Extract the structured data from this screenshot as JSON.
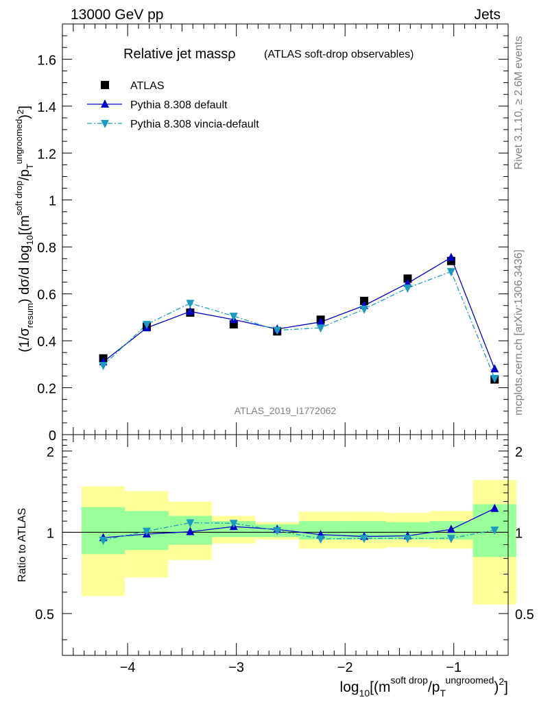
{
  "header": {
    "left": "13000 GeV pp",
    "right": "Jets"
  },
  "side_labels": {
    "rivet": "Rivet 3.1.10, ≥ 2.6M events",
    "mcplots": "mcplots.cern.ch [arXiv:1306.3436]"
  },
  "chart_data": {
    "type": "scatter",
    "title": "Relative jet massρ",
    "subtitle": "(ATLAS soft-drop observables)",
    "watermark": "ATLAS_2019_I1772062",
    "xlabel": "log10[(m^{soft drop}/p_T^{ungroomed})^2]",
    "ylabel_main": "(1/σ_resum) dσ/d log10[(m^{soft drop}/p_T^{ungroomed})^2]",
    "ylabel_ratio": "Ratio to ATLAS",
    "xlim": [
      -4.6,
      -0.5
    ],
    "ylim_main": [
      0,
      1.75
    ],
    "ylim_ratio": [
      0.35,
      2.3
    ],
    "ratio_log_scale": true,
    "x_ticks": [
      "−4",
      "−3",
      "−2",
      "−1"
    ],
    "y_ticks_main": [
      "0",
      "0.2",
      "0.4",
      "0.6",
      "0.8",
      "1",
      "1.2",
      "1.4",
      "1.6"
    ],
    "y_ticks_ratio": [
      "0.5",
      "1",
      "2"
    ],
    "bin_edges": [
      -4.5,
      -4.1,
      -3.7,
      -3.3,
      -2.9,
      -2.5,
      -2.1,
      -1.7,
      -1.3,
      -0.9,
      -0.5
    ],
    "x": [
      -4.3,
      -3.9,
      -3.5,
      -3.1,
      -2.7,
      -2.3,
      -1.9,
      -1.5,
      -1.1,
      -0.7
    ],
    "legend_position": "top-left",
    "series": [
      {
        "name": "ATLAS",
        "marker": "square",
        "color": "#000000",
        "values": [
          0.325,
          0.46,
          0.52,
          0.47,
          0.44,
          0.49,
          0.57,
          0.665,
          0.74,
          0.235
        ]
      },
      {
        "name": "Pythia 8.308 default",
        "marker": "triangle-up",
        "line": "solid",
        "color": "#0000cc",
        "values": [
          0.31,
          0.455,
          0.525,
          0.49,
          0.45,
          0.48,
          0.55,
          0.645,
          0.755,
          0.28
        ]
      },
      {
        "name": "Pythia 8.308 vincia-default",
        "marker": "triangle-down",
        "line": "dashdot",
        "color": "#1a9bbf",
        "values": [
          0.295,
          0.47,
          0.56,
          0.505,
          0.445,
          0.455,
          0.535,
          0.625,
          0.695,
          0.24
        ]
      }
    ],
    "ratio_series": [
      {
        "name": "Pythia 8.308 default",
        "values": [
          0.955,
          0.985,
          1.005,
          1.05,
          1.025,
          0.98,
          0.965,
          0.97,
          1.025,
          1.225
        ]
      },
      {
        "name": "Pythia 8.308 vincia-default",
        "values": [
          0.935,
          1.01,
          1.085,
          1.08,
          1.015,
          0.945,
          0.95,
          0.95,
          0.95,
          1.02
        ]
      }
    ],
    "uncertainty_bands": {
      "inner_color": "#99ff99",
      "outer_color": "#ffff99",
      "inner": [
        [
          0.83,
          1.24
        ],
        [
          0.86,
          1.2
        ],
        [
          0.9,
          1.15
        ],
        [
          0.96,
          1.1
        ],
        [
          0.96,
          1.07
        ],
        [
          0.94,
          1.1
        ],
        [
          0.94,
          1.1
        ],
        [
          0.94,
          1.09
        ],
        [
          0.94,
          1.1
        ],
        [
          0.81,
          1.27
        ]
      ],
      "outer": [
        [
          0.58,
          1.48
        ],
        [
          0.68,
          1.42
        ],
        [
          0.79,
          1.3
        ],
        [
          0.91,
          1.15
        ],
        [
          0.94,
          1.09
        ],
        [
          0.87,
          1.19
        ],
        [
          0.87,
          1.19
        ],
        [
          0.88,
          1.18
        ],
        [
          0.87,
          1.2
        ],
        [
          0.54,
          1.56
        ]
      ]
    }
  }
}
